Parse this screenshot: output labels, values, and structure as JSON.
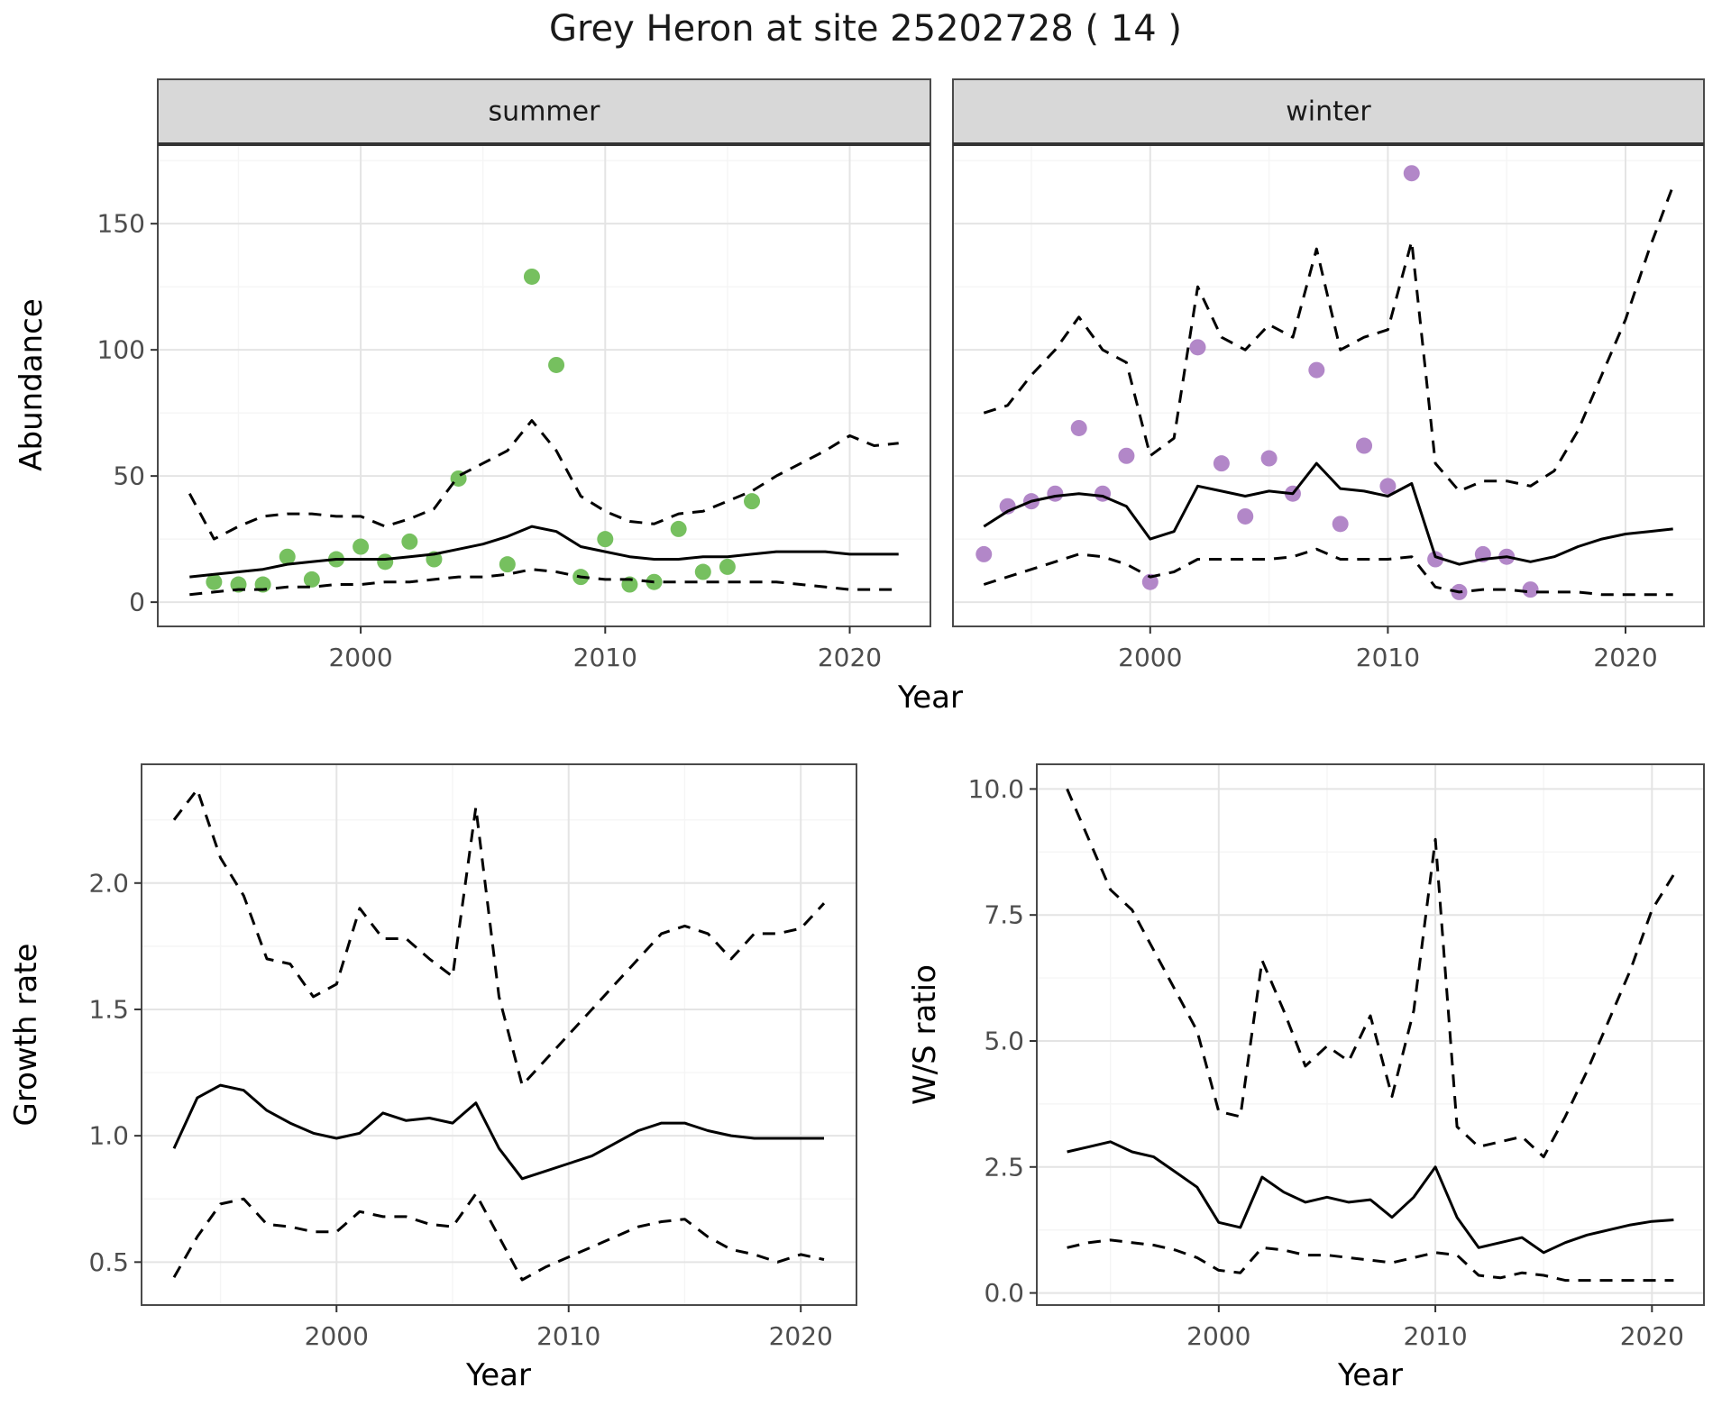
{
  "title": "Grey Heron at site 25202728 ( 14 )",
  "colors": {
    "summer_points": "#76c05f",
    "winter_points": "#b287c8",
    "fit_line": "#000000",
    "ci_line": "#000000",
    "grid_major": "#e4e4e4",
    "grid_minor": "#f5f5f5",
    "panel_border": "#4a4a4a",
    "strip_fill": "#d8d8d8",
    "tick_text": "#4d4d4d",
    "axis_text": "#000000"
  },
  "chart_data": [
    {
      "id": "abundance_summer",
      "type": "scatter",
      "facet": "summer",
      "xlabel": "Year",
      "ylabel": "Abundance",
      "xlim": [
        1991.7,
        2023.3
      ],
      "ylim": [
        -9.6,
        181.5
      ],
      "xticks": [
        2000,
        2010,
        2020
      ],
      "xtick_labels": [
        "2000",
        "2010",
        "2020"
      ],
      "yticks": [
        0,
        50,
        100,
        150
      ],
      "ytick_labels": [
        "0",
        "50",
        "100",
        "150"
      ],
      "point_color": "#76c05f",
      "series": [
        {
          "name": "observed",
          "style": "points",
          "x": [
            1994,
            1995,
            1996,
            1997,
            1998,
            1999,
            2000,
            2001,
            2002,
            2003,
            2004,
            2006,
            2007,
            2008,
            2009,
            2010,
            2011,
            2012,
            2013,
            2014,
            2015,
            2016
          ],
          "y": [
            8,
            7,
            7,
            18,
            9,
            17,
            22,
            16,
            24,
            17,
            49,
            15,
            129,
            94,
            10,
            25,
            7,
            8,
            29,
            12,
            14,
            40
          ]
        },
        {
          "name": "fit",
          "style": "solid",
          "x": [
            1993,
            1994,
            1995,
            1996,
            1997,
            1998,
            1999,
            2000,
            2001,
            2002,
            2003,
            2004,
            2005,
            2006,
            2007,
            2008,
            2009,
            2010,
            2011,
            2012,
            2013,
            2014,
            2015,
            2016,
            2017,
            2018,
            2019,
            2020,
            2021,
            2022
          ],
          "y": [
            10,
            11,
            12,
            13,
            15,
            16,
            17,
            17,
            17,
            18,
            19,
            21,
            23,
            26,
            30,
            28,
            22,
            20,
            18,
            17,
            17,
            18,
            18,
            19,
            20,
            20,
            20,
            19,
            19,
            19
          ]
        },
        {
          "name": "upper_95ci",
          "style": "dashed",
          "x": [
            1993,
            1994,
            1995,
            1996,
            1997,
            1998,
            1999,
            2000,
            2001,
            2002,
            2003,
            2004,
            2005,
            2006,
            2007,
            2008,
            2009,
            2010,
            2011,
            2012,
            2013,
            2014,
            2015,
            2016,
            2017,
            2018,
            2019,
            2020,
            2021,
            2022
          ],
          "y": [
            43,
            25,
            30,
            34,
            35,
            35,
            34,
            34,
            30,
            33,
            37,
            50,
            55,
            60,
            72,
            60,
            42,
            36,
            32,
            31,
            35,
            36,
            40,
            44,
            50,
            55,
            60,
            66,
            62,
            63
          ]
        },
        {
          "name": "lower_95ci",
          "style": "dashed",
          "x": [
            1993,
            1994,
            1995,
            1996,
            1997,
            1998,
            1999,
            2000,
            2001,
            2002,
            2003,
            2004,
            2005,
            2006,
            2007,
            2008,
            2009,
            2010,
            2011,
            2012,
            2013,
            2014,
            2015,
            2016,
            2017,
            2018,
            2019,
            2020,
            2021,
            2022
          ],
          "y": [
            3,
            4,
            5,
            5,
            6,
            6,
            7,
            7,
            8,
            8,
            9,
            10,
            10,
            11,
            13,
            12,
            10,
            9,
            9,
            8,
            8,
            8,
            8,
            8,
            8,
            7,
            6,
            5,
            5,
            5
          ]
        }
      ]
    },
    {
      "id": "abundance_winter",
      "type": "scatter",
      "facet": "winter",
      "xlabel": "Year",
      "ylabel": "Abundance",
      "xlim": [
        1991.7,
        2023.3
      ],
      "ylim": [
        -9.6,
        181.5
      ],
      "xticks": [
        2000,
        2010,
        2020
      ],
      "xtick_labels": [
        "2000",
        "2010",
        "2020"
      ],
      "yticks": [
        0,
        50,
        100,
        150
      ],
      "ytick_labels": [
        "0",
        "50",
        "100",
        "150"
      ],
      "point_color": "#b287c8",
      "series": [
        {
          "name": "observed",
          "style": "points",
          "x": [
            1993,
            1994,
            1995,
            1996,
            1997,
            1998,
            1999,
            2000,
            2002,
            2003,
            2004,
            2005,
            2006,
            2007,
            2008,
            2009,
            2010,
            2011,
            2012,
            2013,
            2014,
            2015,
            2016
          ],
          "y": [
            19,
            38,
            40,
            43,
            69,
            43,
            58,
            8,
            101,
            55,
            34,
            57,
            43,
            92,
            31,
            62,
            46,
            170,
            17,
            4,
            19,
            18,
            5
          ]
        },
        {
          "name": "fit",
          "style": "solid",
          "x": [
            1993,
            1994,
            1995,
            1996,
            1997,
            1998,
            1999,
            2000,
            2001,
            2002,
            2003,
            2004,
            2005,
            2006,
            2007,
            2008,
            2009,
            2010,
            2011,
            2012,
            2013,
            2014,
            2015,
            2016,
            2017,
            2018,
            2019,
            2020,
            2021,
            2022
          ],
          "y": [
            30,
            36,
            40,
            42,
            43,
            42,
            38,
            25,
            28,
            46,
            44,
            42,
            44,
            43,
            55,
            45,
            44,
            42,
            47,
            18,
            15,
            17,
            18,
            16,
            18,
            22,
            25,
            27,
            28,
            29
          ]
        },
        {
          "name": "upper_95ci",
          "style": "dashed",
          "x": [
            1993,
            1994,
            1995,
            1996,
            1997,
            1998,
            1999,
            2000,
            2001,
            2002,
            2003,
            2004,
            2005,
            2006,
            2007,
            2008,
            2009,
            2010,
            2011,
            2012,
            2013,
            2014,
            2015,
            2016,
            2017,
            2018,
            2019,
            2020,
            2021,
            2022
          ],
          "y": [
            75,
            78,
            90,
            100,
            113,
            100,
            95,
            58,
            65,
            125,
            105,
            100,
            110,
            105,
            140,
            100,
            105,
            108,
            143,
            55,
            44,
            48,
            48,
            46,
            52,
            68,
            90,
            112,
            140,
            165
          ]
        },
        {
          "name": "lower_95ci",
          "style": "dashed",
          "x": [
            1993,
            1994,
            1995,
            1996,
            1997,
            1998,
            1999,
            2000,
            2001,
            2002,
            2003,
            2004,
            2005,
            2006,
            2007,
            2008,
            2009,
            2010,
            2011,
            2012,
            2013,
            2014,
            2015,
            2016,
            2017,
            2018,
            2019,
            2020,
            2021,
            2022
          ],
          "y": [
            7,
            10,
            13,
            16,
            19,
            18,
            15,
            10,
            12,
            17,
            17,
            17,
            17,
            18,
            21,
            17,
            17,
            17,
            18,
            6,
            4,
            5,
            5,
            4,
            4,
            4,
            3,
            3,
            3,
            3
          ]
        }
      ]
    },
    {
      "id": "growth_rate",
      "type": "line",
      "facet": "",
      "xlabel": "Year",
      "ylabel": "Growth rate",
      "xlim": [
        1991.6,
        2022.4
      ],
      "ylim": [
        0.33,
        2.47
      ],
      "xticks": [
        2000,
        2010,
        2020
      ],
      "xtick_labels": [
        "2000",
        "2010",
        "2020"
      ],
      "yticks": [
        0.5,
        1.0,
        1.5,
        2.0
      ],
      "ytick_labels": [
        "0.5",
        "1.0",
        "1.5",
        "2.0"
      ],
      "point_color": "#000000",
      "series": [
        {
          "name": "fit",
          "style": "solid",
          "x": [
            1993,
            1994,
            1995,
            1996,
            1997,
            1998,
            1999,
            2000,
            2001,
            2002,
            2003,
            2004,
            2005,
            2006,
            2007,
            2008,
            2009,
            2010,
            2011,
            2012,
            2013,
            2014,
            2015,
            2016,
            2017,
            2018,
            2019,
            2020,
            2021
          ],
          "y": [
            0.95,
            1.15,
            1.2,
            1.18,
            1.1,
            1.05,
            1.01,
            0.99,
            1.01,
            1.09,
            1.06,
            1.07,
            1.05,
            1.13,
            0.95,
            0.83,
            0.86,
            0.89,
            0.92,
            0.97,
            1.02,
            1.05,
            1.05,
            1.02,
            1.0,
            0.99,
            0.99,
            0.99,
            0.99
          ]
        },
        {
          "name": "upper_95ci",
          "style": "dashed",
          "x": [
            1993,
            1994,
            1995,
            1996,
            1997,
            1998,
            1999,
            2000,
            2001,
            2002,
            2003,
            2004,
            2005,
            2006,
            2007,
            2008,
            2009,
            2010,
            2011,
            2012,
            2013,
            2014,
            2015,
            2016,
            2017,
            2018,
            2019,
            2020,
            2021
          ],
          "y": [
            2.25,
            2.37,
            2.1,
            1.95,
            1.7,
            1.68,
            1.55,
            1.6,
            1.9,
            1.78,
            1.78,
            1.7,
            1.63,
            2.3,
            1.55,
            1.2,
            1.3,
            1.4,
            1.5,
            1.6,
            1.7,
            1.8,
            1.83,
            1.8,
            1.7,
            1.8,
            1.8,
            1.82,
            1.92
          ]
        },
        {
          "name": "lower_95ci",
          "style": "dashed",
          "x": [
            1993,
            1994,
            1995,
            1996,
            1997,
            1998,
            1999,
            2000,
            2001,
            2002,
            2003,
            2004,
            2005,
            2006,
            2007,
            2008,
            2009,
            2010,
            2011,
            2012,
            2013,
            2014,
            2015,
            2016,
            2017,
            2018,
            2019,
            2020,
            2021
          ],
          "y": [
            0.44,
            0.6,
            0.73,
            0.75,
            0.65,
            0.64,
            0.62,
            0.62,
            0.7,
            0.68,
            0.68,
            0.65,
            0.64,
            0.77,
            0.6,
            0.43,
            0.48,
            0.52,
            0.56,
            0.6,
            0.64,
            0.66,
            0.67,
            0.6,
            0.55,
            0.53,
            0.5,
            0.53,
            0.51
          ]
        }
      ]
    },
    {
      "id": "ws_ratio",
      "type": "line",
      "facet": "",
      "xlabel": "Year",
      "ylabel": "W/S ratio",
      "xlim": [
        1991.6,
        2022.4
      ],
      "ylim": [
        -0.24,
        10.49
      ],
      "xticks": [
        2000,
        2010,
        2020
      ],
      "xtick_labels": [
        "2000",
        "2010",
        "2020"
      ],
      "yticks": [
        0.0,
        2.5,
        5.0,
        7.5,
        10.0
      ],
      "ytick_labels": [
        "0.0",
        "2.5",
        "5.0",
        "7.5",
        "10.0"
      ],
      "point_color": "#000000",
      "series": [
        {
          "name": "fit",
          "style": "solid",
          "x": [
            1993,
            1994,
            1995,
            1996,
            1997,
            1998,
            1999,
            2000,
            2001,
            2002,
            2003,
            2004,
            2005,
            2006,
            2007,
            2008,
            2009,
            2010,
            2011,
            2012,
            2013,
            2014,
            2015,
            2016,
            2017,
            2018,
            2019,
            2020,
            2021
          ],
          "y": [
            2.8,
            2.9,
            3.0,
            2.8,
            2.7,
            2.4,
            2.1,
            1.4,
            1.3,
            2.3,
            2.0,
            1.8,
            1.9,
            1.8,
            1.85,
            1.5,
            1.9,
            2.5,
            1.5,
            0.9,
            1.0,
            1.1,
            0.8,
            1.0,
            1.15,
            1.25,
            1.35,
            1.42,
            1.45
          ]
        },
        {
          "name": "upper_95ci",
          "style": "dashed",
          "x": [
            1993,
            1994,
            1995,
            1996,
            1997,
            1998,
            1999,
            2000,
            2001,
            2002,
            2003,
            2004,
            2005,
            2006,
            2007,
            2008,
            2009,
            2010,
            2011,
            2012,
            2013,
            2014,
            2015,
            2016,
            2017,
            2018,
            2019,
            2020,
            2021
          ],
          "y": [
            10.0,
            9.0,
            8.0,
            7.6,
            6.8,
            6.0,
            5.2,
            3.6,
            3.5,
            6.6,
            5.6,
            4.5,
            4.9,
            4.6,
            5.5,
            3.9,
            5.6,
            9.0,
            3.3,
            2.9,
            3.0,
            3.1,
            2.7,
            3.5,
            4.4,
            5.4,
            6.4,
            7.6,
            8.3
          ]
        },
        {
          "name": "lower_95ci",
          "style": "dashed",
          "x": [
            1993,
            1994,
            1995,
            1996,
            1997,
            1998,
            1999,
            2000,
            2001,
            2002,
            2003,
            2004,
            2005,
            2006,
            2007,
            2008,
            2009,
            2010,
            2011,
            2012,
            2013,
            2014,
            2015,
            2016,
            2017,
            2018,
            2019,
            2020,
            2021
          ],
          "y": [
            0.9,
            1.0,
            1.05,
            1.0,
            0.95,
            0.85,
            0.7,
            0.45,
            0.4,
            0.9,
            0.85,
            0.75,
            0.75,
            0.7,
            0.65,
            0.6,
            0.7,
            0.8,
            0.75,
            0.35,
            0.3,
            0.4,
            0.35,
            0.25,
            0.25,
            0.25,
            0.25,
            0.25,
            0.25
          ]
        }
      ]
    }
  ]
}
